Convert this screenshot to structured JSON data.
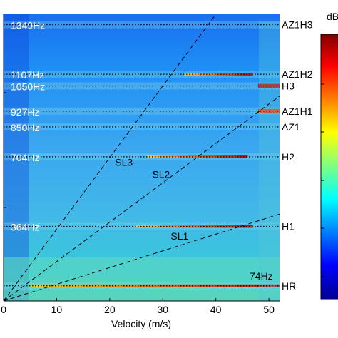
{
  "chart_data": {
    "type": "heatmap",
    "title": "",
    "xlabel": "Velocity (m/s)",
    "ylabel": "",
    "xlim": [
      0,
      52
    ],
    "ylim": [
      0,
      1400
    ],
    "x_ticks": [
      0,
      10,
      20,
      30,
      40,
      50
    ],
    "colorbar": {
      "unit": "dB",
      "colormap": "jet"
    },
    "harmonic_lines": [
      {
        "frequency": 1349,
        "freq_label": "1349Hz",
        "mode": "AZ1H3"
      },
      {
        "frequency": 1107,
        "freq_label": "1107Hz",
        "mode": "AZ1H2"
      },
      {
        "frequency": 1050,
        "freq_label": "1050Hz",
        "mode": "H3"
      },
      {
        "frequency": 927,
        "freq_label": "927Hz",
        "mode": "AZ1H1"
      },
      {
        "frequency": 850,
        "freq_label": "850Hz",
        "mode": "AZ1"
      },
      {
        "frequency": 704,
        "freq_label": "704Hz",
        "mode": "H2"
      },
      {
        "frequency": 364,
        "freq_label": "364Hz",
        "mode": "H1"
      },
      {
        "frequency": 74,
        "freq_label": "74Hz",
        "mode": "HR"
      }
    ],
    "speed_lines": [
      {
        "name": "SL1",
        "x": [
          0,
          52
        ],
        "y": [
          0,
          424
        ]
      },
      {
        "name": "SL2",
        "x": [
          0,
          52
        ],
        "y": [
          0,
          1000
        ]
      },
      {
        "name": "SL3",
        "x": [
          0,
          40
        ],
        "y": [
          0,
          1400
        ]
      }
    ],
    "speed_line_label_pos": [
      {
        "name": "SL1",
        "x": 31.5,
        "y": 300
      },
      {
        "name": "SL2",
        "x": 28,
        "y": 600
      },
      {
        "name": "SL3",
        "x": 21,
        "y": 660
      }
    ]
  }
}
